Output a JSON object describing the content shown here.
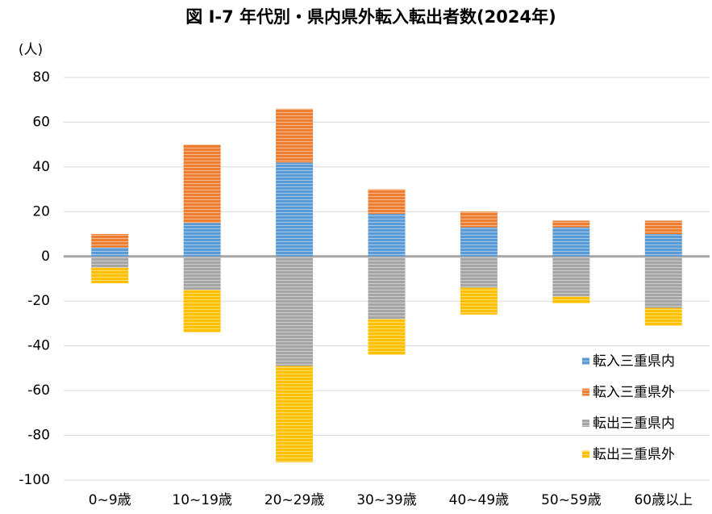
{
  "chart_data": {
    "type": "stacked_bar",
    "title": "図 Ⅰ-7 年代別・県内県外転入転出者数(2024年)",
    "y_label": "(人)",
    "categories": [
      "0~9歳",
      "10~19歳",
      "20~29歳",
      "30~39歳",
      "40~49歳",
      "50~59歳",
      "60歳以上"
    ],
    "series": [
      {
        "name": "転入三重県内",
        "color": "#5b9bd5",
        "values": [
          4,
          15,
          42,
          19,
          13,
          13,
          10
        ]
      },
      {
        "name": "転入三重県外",
        "color": "#ed7d31",
        "values": [
          6,
          35,
          24,
          11,
          7,
          3,
          6
        ]
      },
      {
        "name": "転出三重県内",
        "color": "#a5a5a5",
        "values": [
          -5,
          -15,
          -49,
          -28,
          -14,
          -18,
          -23
        ]
      },
      {
        "name": "転出三重県外",
        "color": "#ffc000",
        "values": [
          -7,
          -19,
          -43,
          -16,
          -12,
          -3,
          -8
        ]
      }
    ],
    "ylim": [
      -100,
      80
    ],
    "yticks": [
      -100,
      -80,
      -60,
      -40,
      -20,
      0,
      20,
      40,
      60,
      80
    ],
    "grid": true,
    "legend": "lower right"
  }
}
